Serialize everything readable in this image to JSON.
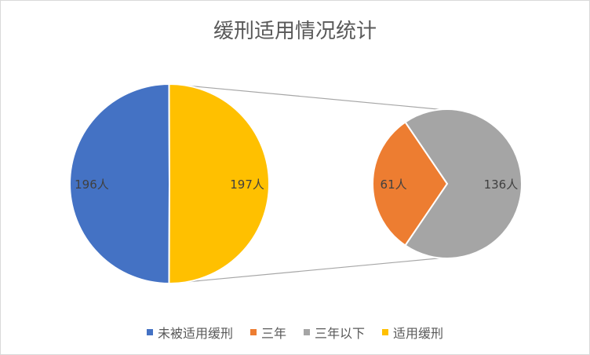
{
  "chart_data": {
    "type": "pie",
    "subtype": "pie-of-pie",
    "title": "缓刑适用情况统计",
    "primary": {
      "slices": [
        {
          "name": "未被适用缓刑",
          "value": 196,
          "label": "196人",
          "color": "#4472C4"
        },
        {
          "name": "适用缓刑",
          "value": 197,
          "label": "197人",
          "color": "#FFC000"
        }
      ]
    },
    "secondary": {
      "breakdown_of": "适用缓刑",
      "slices": [
        {
          "name": "三年",
          "value": 61,
          "label": "61人",
          "color": "#ED7D31"
        },
        {
          "name": "三年以下",
          "value": 136,
          "label": "136人",
          "color": "#A5A5A5"
        }
      ]
    },
    "legend": {
      "position": "bottom",
      "entries": [
        {
          "label": "未被适用缓刑",
          "color": "#4472C4"
        },
        {
          "label": "三年",
          "color": "#ED7D31"
        },
        {
          "label": "三年以下",
          "color": "#A5A5A5"
        },
        {
          "label": "适用缓刑",
          "color": "#FFC000"
        }
      ]
    }
  }
}
